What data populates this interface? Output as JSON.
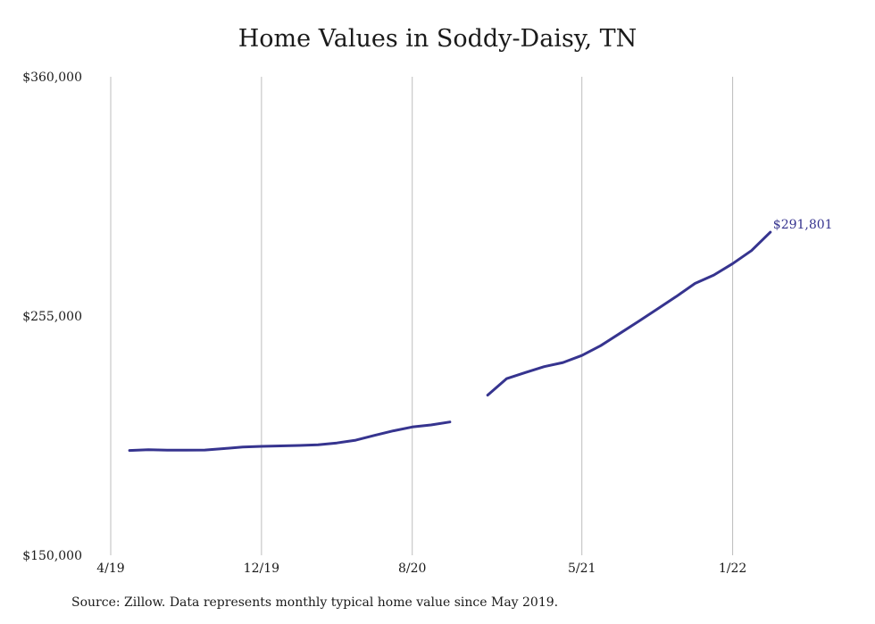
{
  "chart_data": {
    "type": "line",
    "title": "Home Values in Soddy-Daisy, TN",
    "xlabel": "",
    "ylabel": "",
    "x_ticks": [
      {
        "label": "4/19",
        "date": "2019-04"
      },
      {
        "label": "12/19",
        "date": "2019-12"
      },
      {
        "label": "8/20",
        "date": "2020-08"
      },
      {
        "label": "5/21",
        "date": "2021-05"
      },
      {
        "label": "1/22",
        "date": "2022-01"
      }
    ],
    "y_ticks": [
      150000,
      255000,
      360000
    ],
    "y_tick_labels": [
      "$150,000",
      "$255,000",
      "$360,000"
    ],
    "ylim": [
      150000,
      360000
    ],
    "xlim": [
      "2019-04",
      "2022-05"
    ],
    "grid": "vertical",
    "line_color": "#36348f",
    "series": [
      {
        "name": "",
        "points": [
          {
            "x": "2019-05",
            "y": 196000
          },
          {
            "x": "2019-06",
            "y": 196300
          },
          {
            "x": "2019-07",
            "y": 196100
          },
          {
            "x": "2019-08",
            "y": 196100
          },
          {
            "x": "2019-09",
            "y": 196200
          },
          {
            "x": "2019-10",
            "y": 196800
          },
          {
            "x": "2019-11",
            "y": 197500
          },
          {
            "x": "2019-12",
            "y": 197800
          },
          {
            "x": "2020-01",
            "y": 198000
          },
          {
            "x": "2020-02",
            "y": 198200
          },
          {
            "x": "2020-03",
            "y": 198500
          },
          {
            "x": "2020-04",
            "y": 199300
          },
          {
            "x": "2020-05",
            "y": 200500
          },
          {
            "x": "2020-06",
            "y": 202600
          },
          {
            "x": "2020-07",
            "y": 204600
          },
          {
            "x": "2020-08",
            "y": 206300
          },
          {
            "x": "2020-09",
            "y": 207200
          },
          {
            "x": "2020-10",
            "y": 208500
          },
          {
            "x": "2020-11",
            "y": null
          },
          {
            "x": "2020-12",
            "y": 220300
          },
          {
            "x": "2021-01",
            "y": 227500
          },
          {
            "x": "2021-02",
            "y": 230200
          },
          {
            "x": "2021-03",
            "y": 232800
          },
          {
            "x": "2021-04",
            "y": 234600
          },
          {
            "x": "2021-05",
            "y": 237700
          },
          {
            "x": "2021-06",
            "y": 242000
          },
          {
            "x": "2021-07",
            "y": 247300
          },
          {
            "x": "2021-08",
            "y": 252600
          },
          {
            "x": "2021-09",
            "y": 258000
          },
          {
            "x": "2021-10",
            "y": 263500
          },
          {
            "x": "2021-11",
            "y": 269300
          },
          {
            "x": "2021-12",
            "y": 273000
          },
          {
            "x": "2022-01",
            "y": 278000
          },
          {
            "x": "2022-02",
            "y": 283700
          },
          {
            "x": "2022-03",
            "y": 291801
          }
        ]
      }
    ],
    "end_label": "$291,801",
    "source": "Source: Zillow. Data represents monthly typical home value since May 2019."
  }
}
